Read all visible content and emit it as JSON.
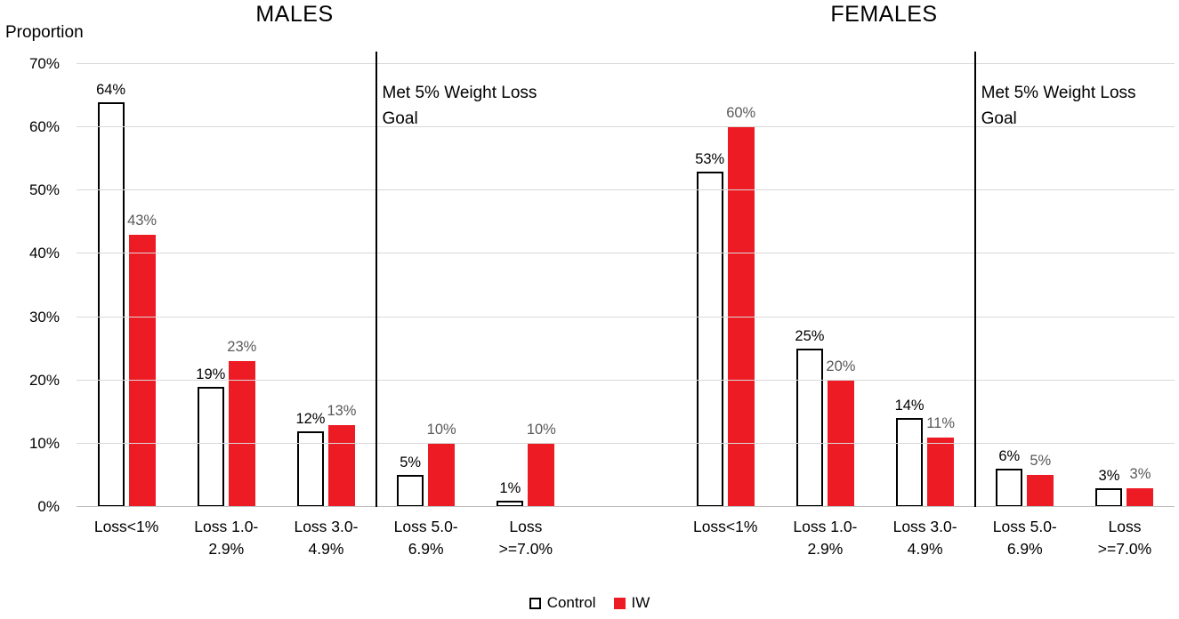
{
  "chart_data": {
    "type": "bar",
    "ylabel": "Proportion",
    "ylim": [
      0,
      70
    ],
    "ytick_step": 10,
    "ytick_suffix": "%",
    "grid": true,
    "legend_position": "bottom",
    "annotation": "Met 5% Weight Loss\nGoal",
    "colors": {
      "control_fill": "#ffffff",
      "control_border": "#000000",
      "iw_fill": "#ed1c24",
      "gridline": "#d9d9d9",
      "separator": "#000000",
      "control_value_label": "#000000",
      "iw_value_label": "#595959"
    },
    "legend": [
      {
        "name": "Control"
      },
      {
        "name": "IW"
      }
    ],
    "groups": [
      {
        "title": "MALES",
        "categories": [
          "Loss<1%",
          "Loss 1.0-\n2.9%",
          "Loss 3.0-\n4.9%",
          "Loss 5.0-\n6.9%",
          "Loss\n>=7.0%"
        ],
        "separator_after_index": 2,
        "series": [
          {
            "name": "Control",
            "values": [
              64,
              19,
              12,
              5,
              1
            ]
          },
          {
            "name": "IW",
            "values": [
              43,
              23,
              13,
              10,
              10
            ]
          }
        ]
      },
      {
        "title": "FEMALES",
        "categories": [
          "Loss<1%",
          "Loss 1.0-\n2.9%",
          "Loss 3.0-\n4.9%",
          "Loss 5.0-\n6.9%",
          "Loss\n>=7.0%"
        ],
        "separator_after_index": 2,
        "series": [
          {
            "name": "Control",
            "values": [
              53,
              25,
              14,
              6,
              3
            ]
          },
          {
            "name": "IW",
            "values": [
              60,
              20,
              11,
              5,
              3
            ]
          }
        ]
      }
    ]
  }
}
